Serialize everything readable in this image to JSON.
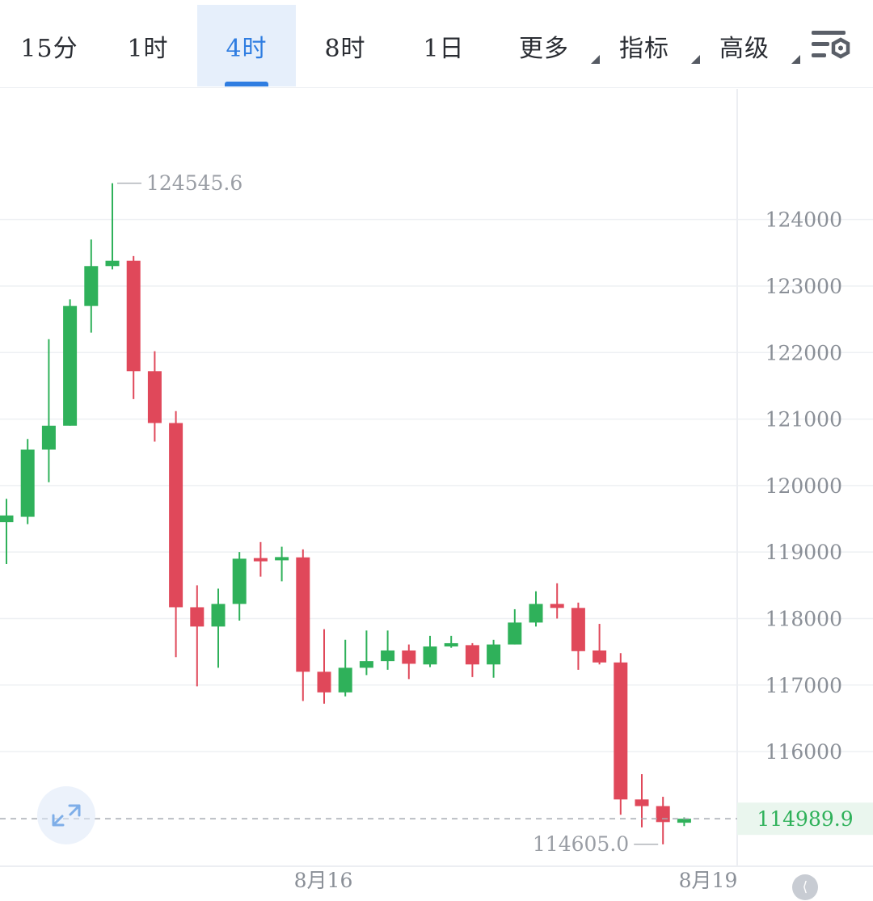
{
  "toolbar": {
    "tabs": [
      {
        "label": "15分"
      },
      {
        "label": "1时"
      },
      {
        "label": "4时",
        "active": true
      },
      {
        "label": "8时"
      },
      {
        "label": "1日"
      },
      {
        "label": "更多"
      },
      {
        "label": "指标"
      },
      {
        "label": "高级"
      }
    ],
    "settings_icon": "chart-settings-icon"
  },
  "colors": {
    "up": "#2fb15a",
    "down": "#e0485a",
    "accent": "#2f7de1",
    "grid": "#eef0f3",
    "axis_text": "#8a8f97",
    "last_price": "#2fb15a"
  },
  "chart_data": {
    "type": "candlestick",
    "y_axis": {
      "position": "right",
      "ticks": [
        124000,
        123000,
        122000,
        121000,
        120000,
        119000,
        118000,
        117000,
        116000
      ]
    },
    "x_axis": {
      "ticks": [
        "8月16",
        "8月19"
      ]
    },
    "grid": true,
    "annotations": {
      "high": {
        "label": "124545.6",
        "value": 124545.6
      },
      "low": {
        "label": "114605.0",
        "value": 114605.0
      },
      "last_price": {
        "label": "114989.9",
        "value": 114989.9
      }
    },
    "candles": [
      {
        "o": 119450,
        "c": 119550,
        "h": 119800,
        "l": 118820
      },
      {
        "o": 119530,
        "c": 120540,
        "h": 120700,
        "l": 119420
      },
      {
        "o": 120540,
        "c": 120900,
        "h": 122200,
        "l": 120050
      },
      {
        "o": 120900,
        "c": 122700,
        "h": 122800,
        "l": 120900
      },
      {
        "o": 122700,
        "c": 123300,
        "h": 123700,
        "l": 122300
      },
      {
        "o": 123300,
        "c": 123380,
        "h": 124545.6,
        "l": 123250
      },
      {
        "o": 123380,
        "c": 121720,
        "h": 123450,
        "l": 121300
      },
      {
        "o": 121720,
        "c": 120940,
        "h": 122020,
        "l": 120660
      },
      {
        "o": 120940,
        "c": 118170,
        "h": 121120,
        "l": 117420
      },
      {
        "o": 118170,
        "c": 117880,
        "h": 118500,
        "l": 116980
      },
      {
        "o": 117880,
        "c": 118220,
        "h": 118450,
        "l": 117260
      },
      {
        "o": 118220,
        "c": 118900,
        "h": 119000,
        "l": 117970
      },
      {
        "o": 118890,
        "c": 118880,
        "h": 119150,
        "l": 118630
      },
      {
        "o": 118890,
        "c": 118910,
        "h": 119080,
        "l": 118560
      },
      {
        "o": 118920,
        "c": 117200,
        "h": 119040,
        "l": 116760
      },
      {
        "o": 117200,
        "c": 116890,
        "h": 117840,
        "l": 116720
      },
      {
        "o": 116890,
        "c": 117260,
        "h": 117680,
        "l": 116830
      },
      {
        "o": 117260,
        "c": 117360,
        "h": 117820,
        "l": 117150
      },
      {
        "o": 117360,
        "c": 117520,
        "h": 117820,
        "l": 117230
      },
      {
        "o": 117520,
        "c": 117320,
        "h": 117610,
        "l": 117090
      },
      {
        "o": 117310,
        "c": 117580,
        "h": 117740,
        "l": 117270
      },
      {
        "o": 117600,
        "c": 117610,
        "h": 117740,
        "l": 117560
      },
      {
        "o": 117600,
        "c": 117310,
        "h": 117630,
        "l": 117120
      },
      {
        "o": 117310,
        "c": 117610,
        "h": 117680,
        "l": 117110
      },
      {
        "o": 117610,
        "c": 117940,
        "h": 118140,
        "l": 117610
      },
      {
        "o": 117940,
        "c": 118220,
        "h": 118410,
        "l": 117880
      },
      {
        "o": 118220,
        "c": 118160,
        "h": 118530,
        "l": 118000
      },
      {
        "o": 118160,
        "c": 117510,
        "h": 118240,
        "l": 117230
      },
      {
        "o": 117520,
        "c": 117340,
        "h": 117920,
        "l": 117310
      },
      {
        "o": 117340,
        "c": 115280,
        "h": 117480,
        "l": 115050
      },
      {
        "o": 115280,
        "c": 115180,
        "h": 115660,
        "l": 114860
      },
      {
        "o": 115180,
        "c": 114940,
        "h": 115320,
        "l": 114605.0
      },
      {
        "o": 114930,
        "c": 114990,
        "h": 115010,
        "l": 114880
      }
    ]
  }
}
